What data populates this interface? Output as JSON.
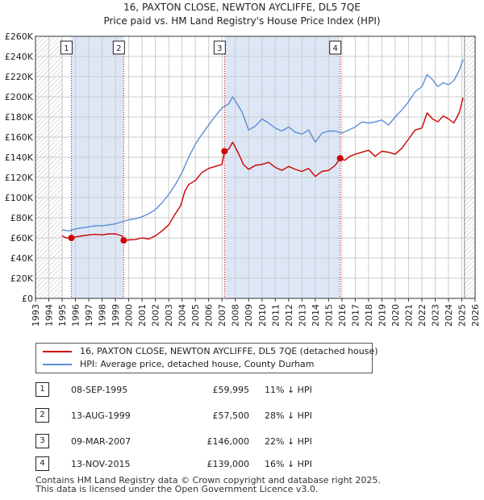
{
  "chart_data": {
    "type": "line",
    "title": "16, PAXTON CLOSE, NEWTON AYCLIFFE, DL5 7QE",
    "subtitle": "Price paid vs. HM Land Registry's House Price Index (HPI)",
    "xlim": [
      1993,
      2026
    ],
    "ylim": [
      0,
      260000
    ],
    "x_ticks": [
      "1993",
      "1994",
      "1995",
      "1996",
      "1997",
      "1998",
      "1999",
      "2000",
      "2001",
      "2002",
      "2003",
      "2004",
      "2005",
      "2006",
      "2007",
      "2008",
      "2009",
      "2010",
      "2011",
      "2012",
      "2013",
      "2014",
      "2015",
      "2016",
      "2017",
      "2018",
      "2019",
      "2020",
      "2021",
      "2022",
      "2023",
      "2024",
      "2025",
      "2026"
    ],
    "y_ticks": [
      {
        "value": 0,
        "label": "£0"
      },
      {
        "value": 20000,
        "label": "£20K"
      },
      {
        "value": 40000,
        "label": "£40K"
      },
      {
        "value": 60000,
        "label": "£60K"
      },
      {
        "value": 80000,
        "label": "£80K"
      },
      {
        "value": 100000,
        "label": "£100K"
      },
      {
        "value": 120000,
        "label": "£120K"
      },
      {
        "value": 140000,
        "label": "£140K"
      },
      {
        "value": 160000,
        "label": "£160K"
      },
      {
        "value": 180000,
        "label": "£180K"
      },
      {
        "value": 200000,
        "label": "£200K"
      },
      {
        "value": 220000,
        "label": "£220K"
      },
      {
        "value": 240000,
        "label": "£240K"
      },
      {
        "value": 260000,
        "label": "£260K"
      }
    ],
    "hatched_regions": [
      [
        1993,
        1995.0
      ],
      [
        2025.2,
        2026
      ]
    ],
    "shaded_spans": [
      [
        1995.69,
        1999.62
      ],
      [
        2007.19,
        2015.87
      ]
    ],
    "series": [
      {
        "name": "16, PAXTON CLOSE, NEWTON AYCLIFFE, DL5 7QE (detached house)",
        "color": "#cc0000",
        "points": [
          [
            1995.0,
            62000
          ],
          [
            1995.3,
            60000
          ],
          [
            1995.69,
            59995
          ],
          [
            1996.0,
            61000
          ],
          [
            1996.5,
            62000
          ],
          [
            1997.0,
            63000
          ],
          [
            1997.5,
            63500
          ],
          [
            1998.0,
            63000
          ],
          [
            1998.5,
            64000
          ],
          [
            1999.0,
            64000
          ],
          [
            1999.5,
            62000
          ],
          [
            1999.62,
            57500
          ],
          [
            2000.0,
            58000
          ],
          [
            2000.5,
            58500
          ],
          [
            2001.0,
            60000
          ],
          [
            2001.5,
            59000
          ],
          [
            2002.0,
            62000
          ],
          [
            2002.5,
            67000
          ],
          [
            2003.0,
            73000
          ],
          [
            2003.5,
            84000
          ],
          [
            2003.9,
            92000
          ],
          [
            2004.2,
            106000
          ],
          [
            2004.5,
            113000
          ],
          [
            2005.0,
            117000
          ],
          [
            2005.5,
            125000
          ],
          [
            2006.0,
            129000
          ],
          [
            2006.5,
            131000
          ],
          [
            2007.0,
            133000
          ],
          [
            2007.19,
            146000
          ],
          [
            2007.5,
            148000
          ],
          [
            2007.8,
            155000
          ],
          [
            2008.0,
            150000
          ],
          [
            2008.3,
            142000
          ],
          [
            2008.6,
            133000
          ],
          [
            2009.0,
            128000
          ],
          [
            2009.5,
            132000
          ],
          [
            2010.0,
            133000
          ],
          [
            2010.5,
            135000
          ],
          [
            2011.0,
            130000
          ],
          [
            2011.5,
            127000
          ],
          [
            2012.0,
            131000
          ],
          [
            2012.5,
            128000
          ],
          [
            2013.0,
            126000
          ],
          [
            2013.5,
            129000
          ],
          [
            2014.0,
            121000
          ],
          [
            2014.5,
            126000
          ],
          [
            2015.0,
            127000
          ],
          [
            2015.5,
            132000
          ],
          [
            2015.87,
            139000
          ],
          [
            2016.2,
            137000
          ],
          [
            2016.6,
            141000
          ],
          [
            2017.0,
            143000
          ],
          [
            2017.5,
            145000
          ],
          [
            2018.0,
            147000
          ],
          [
            2018.5,
            141000
          ],
          [
            2019.0,
            146000
          ],
          [
            2019.5,
            145000
          ],
          [
            2020.0,
            143000
          ],
          [
            2020.5,
            149000
          ],
          [
            2021.0,
            158000
          ],
          [
            2021.5,
            167000
          ],
          [
            2022.0,
            169000
          ],
          [
            2022.4,
            184000
          ],
          [
            2022.8,
            178000
          ],
          [
            2023.2,
            175000
          ],
          [
            2023.6,
            181000
          ],
          [
            2024.0,
            178000
          ],
          [
            2024.4,
            174000
          ],
          [
            2024.8,
            184000
          ],
          [
            2025.1,
            199000
          ]
        ]
      },
      {
        "name": "HPI: Average price, detached house, County Durham",
        "color": "#5b8fd6",
        "points": [
          [
            1995.0,
            68000
          ],
          [
            1995.5,
            67000
          ],
          [
            1996.0,
            69000
          ],
          [
            1996.5,
            70000
          ],
          [
            1997.0,
            71000
          ],
          [
            1997.5,
            72000
          ],
          [
            1998.0,
            72000
          ],
          [
            1998.5,
            73000
          ],
          [
            1999.0,
            74000
          ],
          [
            1999.5,
            76000
          ],
          [
            2000.0,
            78000
          ],
          [
            2000.5,
            79000
          ],
          [
            2001.0,
            81000
          ],
          [
            2001.5,
            84000
          ],
          [
            2002.0,
            88000
          ],
          [
            2002.5,
            95000
          ],
          [
            2003.0,
            103000
          ],
          [
            2003.5,
            113000
          ],
          [
            2004.0,
            125000
          ],
          [
            2004.5,
            140000
          ],
          [
            2005.0,
            153000
          ],
          [
            2005.5,
            163000
          ],
          [
            2006.0,
            172000
          ],
          [
            2006.5,
            181000
          ],
          [
            2007.0,
            189000
          ],
          [
            2007.5,
            193000
          ],
          [
            2007.8,
            200000
          ],
          [
            2008.0,
            196000
          ],
          [
            2008.5,
            185000
          ],
          [
            2009.0,
            167000
          ],
          [
            2009.5,
            171000
          ],
          [
            2010.0,
            178000
          ],
          [
            2010.5,
            174000
          ],
          [
            2011.0,
            169000
          ],
          [
            2011.5,
            166000
          ],
          [
            2012.0,
            170000
          ],
          [
            2012.5,
            165000
          ],
          [
            2013.0,
            163000
          ],
          [
            2013.5,
            167000
          ],
          [
            2014.0,
            155000
          ],
          [
            2014.5,
            164000
          ],
          [
            2015.0,
            166000
          ],
          [
            2015.5,
            166000
          ],
          [
            2016.0,
            164000
          ],
          [
            2016.5,
            167000
          ],
          [
            2017.0,
            170000
          ],
          [
            2017.5,
            175000
          ],
          [
            2018.0,
            174000
          ],
          [
            2018.5,
            175000
          ],
          [
            2019.0,
            177000
          ],
          [
            2019.5,
            172000
          ],
          [
            2020.0,
            180000
          ],
          [
            2020.5,
            187000
          ],
          [
            2021.0,
            195000
          ],
          [
            2021.5,
            205000
          ],
          [
            2022.0,
            210000
          ],
          [
            2022.4,
            222000
          ],
          [
            2022.8,
            217000
          ],
          [
            2023.2,
            210000
          ],
          [
            2023.6,
            214000
          ],
          [
            2024.0,
            212000
          ],
          [
            2024.4,
            216000
          ],
          [
            2024.8,
            226000
          ],
          [
            2025.1,
            237000
          ]
        ]
      }
    ],
    "sales": [
      {
        "num": "1",
        "year": 1995.69,
        "price": 59995
      },
      {
        "num": "2",
        "year": 1999.62,
        "price": 57500
      },
      {
        "num": "3",
        "year": 2007.19,
        "price": 146000
      },
      {
        "num": "4",
        "year": 2015.87,
        "price": 139000
      }
    ]
  },
  "legend": {
    "line1": "16, PAXTON CLOSE, NEWTON AYCLIFFE, DL5 7QE (detached house)",
    "line2": "HPI: Average price, detached house, County Durham"
  },
  "table": [
    {
      "num": "1",
      "date": "08-SEP-1995",
      "price": "£59,995",
      "hpi": "11% ↓ HPI"
    },
    {
      "num": "2",
      "date": "13-AUG-1999",
      "price": "£57,500",
      "hpi": "28% ↓ HPI"
    },
    {
      "num": "3",
      "date": "09-MAR-2007",
      "price": "£146,000",
      "hpi": "22% ↓ HPI"
    },
    {
      "num": "4",
      "date": "13-NOV-2015",
      "price": "£139,000",
      "hpi": "16% ↓ HPI"
    }
  ],
  "footer": {
    "line1": "Contains HM Land Registry data © Crown copyright and database right 2025.",
    "line2": "This data is licensed under the Open Government Licence v3.0."
  },
  "colors": {
    "price_line": "#cc0000",
    "hpi_line": "#5b8fd6",
    "shade": "#dde6f5",
    "grid": "#cccccc"
  }
}
